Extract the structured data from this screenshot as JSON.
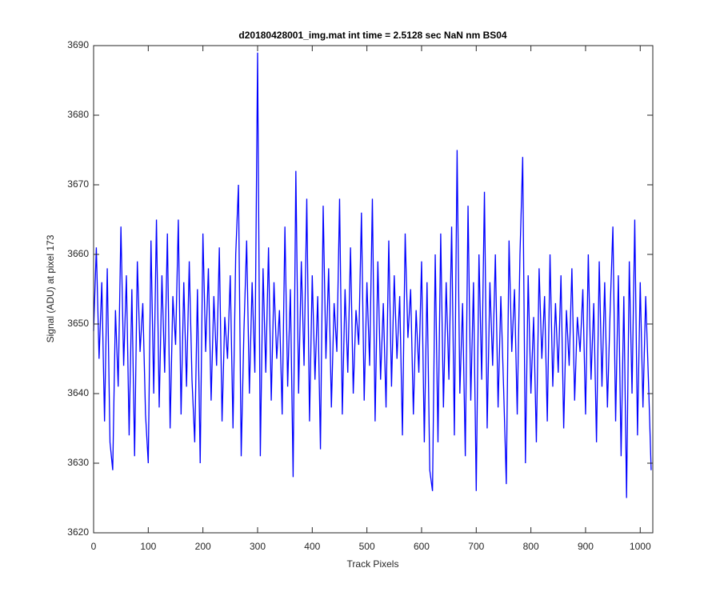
{
  "chart_data": {
    "type": "line",
    "title": "d20180428001_img.mat int time = 2.5128 sec  NaN nm BS04",
    "x_label": "Track Pixels",
    "y_label": "Signal (ADU) at pixel 173",
    "x": [
      0,
      5,
      10,
      15,
      20,
      25,
      30,
      35,
      40,
      45,
      50,
      55,
      60,
      65,
      70,
      75,
      80,
      85,
      90,
      95,
      100,
      105,
      110,
      115,
      120,
      125,
      130,
      135,
      140,
      145,
      150,
      155,
      160,
      165,
      170,
      175,
      180,
      185,
      190,
      195,
      200,
      205,
      210,
      215,
      220,
      225,
      230,
      235,
      240,
      245,
      250,
      255,
      260,
      265,
      270,
      275,
      280,
      285,
      290,
      295,
      300,
      305,
      310,
      315,
      320,
      325,
      330,
      335,
      340,
      345,
      350,
      355,
      360,
      365,
      370,
      375,
      380,
      385,
      390,
      395,
      400,
      405,
      410,
      415,
      420,
      425,
      430,
      435,
      440,
      445,
      450,
      455,
      460,
      465,
      470,
      475,
      480,
      485,
      490,
      495,
      500,
      505,
      510,
      515,
      520,
      525,
      530,
      535,
      540,
      545,
      550,
      555,
      560,
      565,
      570,
      575,
      580,
      585,
      590,
      595,
      600,
      605,
      610,
      615,
      620,
      625,
      630,
      635,
      640,
      645,
      650,
      655,
      660,
      665,
      670,
      675,
      680,
      685,
      690,
      695,
      700,
      705,
      710,
      715,
      720,
      725,
      730,
      735,
      740,
      745,
      750,
      755,
      760,
      765,
      770,
      775,
      780,
      785,
      790,
      795,
      800,
      805,
      810,
      815,
      820,
      825,
      830,
      835,
      840,
      845,
      850,
      855,
      860,
      865,
      870,
      875,
      880,
      885,
      890,
      895,
      900,
      905,
      910,
      915,
      920,
      925,
      930,
      935,
      940,
      945,
      950,
      955,
      960,
      965,
      970,
      975,
      980,
      985,
      990,
      995,
      1000,
      1005,
      1010,
      1015,
      1020
    ],
    "series": [
      {
        "color": "#0000ff",
        "values": [
          3649,
          3661,
          3645,
          3656,
          3636,
          3658,
          3633,
          3629,
          3652,
          3641,
          3664,
          3644,
          3657,
          3634,
          3655,
          3631,
          3659,
          3646,
          3653,
          3637,
          3630,
          3662,
          3640,
          3665,
          3638,
          3657,
          3643,
          3663,
          3635,
          3654,
          3647,
          3665,
          3637,
          3656,
          3641,
          3659,
          3642,
          3633,
          3655,
          3630,
          3663,
          3646,
          3658,
          3639,
          3654,
          3644,
          3661,
          3636,
          3651,
          3645,
          3657,
          3635,
          3660,
          3670,
          3631,
          3649,
          3662,
          3640,
          3656,
          3643,
          3689,
          3631,
          3658,
          3643,
          3661,
          3639,
          3656,
          3645,
          3652,
          3637,
          3664,
          3641,
          3655,
          3628,
          3672,
          3640,
          3659,
          3644,
          3668,
          3636,
          3657,
          3642,
          3654,
          3632,
          3667,
          3645,
          3658,
          3638,
          3653,
          3646,
          3668,
          3637,
          3655,
          3643,
          3661,
          3640,
          3652,
          3647,
          3666,
          3639,
          3656,
          3644,
          3668,
          3636,
          3659,
          3642,
          3653,
          3638,
          3662,
          3641,
          3657,
          3645,
          3654,
          3634,
          3663,
          3648,
          3655,
          3637,
          3652,
          3643,
          3659,
          3633,
          3656,
          3629,
          3626,
          3660,
          3633,
          3663,
          3638,
          3656,
          3642,
          3664,
          3634,
          3675,
          3640,
          3653,
          3631,
          3667,
          3639,
          3656,
          3626,
          3660,
          3642,
          3669,
          3635,
          3656,
          3644,
          3660,
          3638,
          3654,
          3641,
          3627,
          3662,
          3646,
          3655,
          3637,
          3660,
          3674,
          3630,
          3657,
          3640,
          3651,
          3633,
          3658,
          3645,
          3654,
          3636,
          3660,
          3641,
          3653,
          3643,
          3657,
          3635,
          3652,
          3644,
          3658,
          3639,
          3651,
          3646,
          3655,
          3637,
          3660,
          3642,
          3653,
          3633,
          3659,
          3641,
          3656,
          3638,
          3652,
          3664,
          3636,
          3657,
          3631,
          3654,
          3625,
          3659,
          3640,
          3665,
          3634,
          3656,
          3638,
          3654,
          3642,
          3629
        ]
      }
    ],
    "xlim": [
      0,
      1023
    ],
    "ylim": [
      3620,
      3690
    ],
    "xticks": [
      0,
      100,
      200,
      300,
      400,
      500,
      600,
      700,
      800,
      900,
      1000
    ],
    "yticks": [
      3620,
      3630,
      3640,
      3650,
      3660,
      3670,
      3680,
      3690
    ],
    "box": true
  }
}
